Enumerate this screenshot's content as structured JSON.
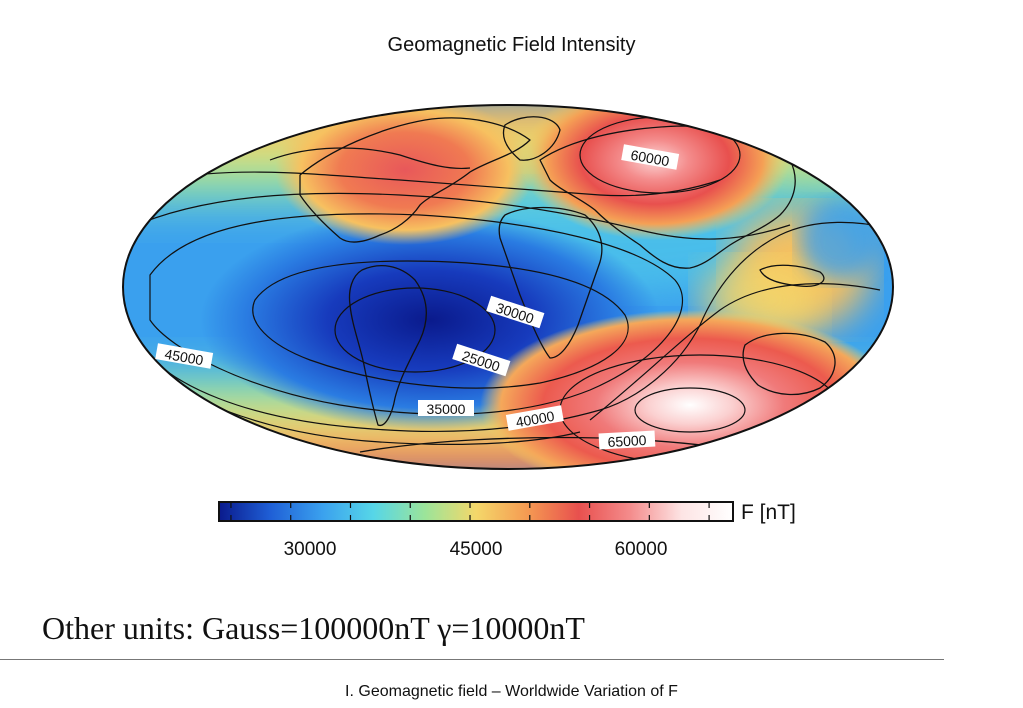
{
  "title": "Geomagnetic Field Intensity",
  "contour_labels": [
    "60000",
    "30000",
    "45000",
    "25000",
    "35000",
    "40000",
    "65000"
  ],
  "colorbar": {
    "unit_label": "F [nT]",
    "tick_labels": [
      "30000",
      "45000",
      "60000"
    ],
    "range": [
      24000,
      67000
    ],
    "colors": [
      "#0a1a8c",
      "#1f5fd6",
      "#3aa0ee",
      "#56d6e8",
      "#9be49a",
      "#f4d86a",
      "#f59a52",
      "#e8504e",
      "#f48c8c",
      "#fde4e4",
      "#ffffff"
    ]
  },
  "note": "Other units: Gauss=100000nT γ=10000nT",
  "footer": "I. Geomagnetic field – Worldwide Variation of F"
}
